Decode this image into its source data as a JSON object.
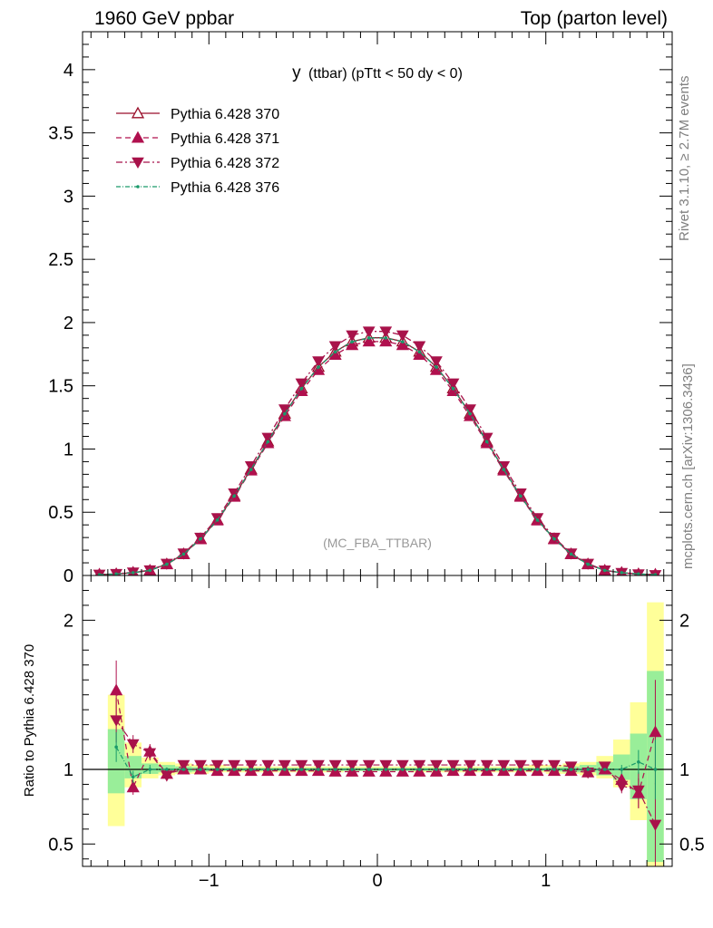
{
  "header": {
    "left": "1960 GeV ppbar",
    "right": "Top (parton level)",
    "side_top": "Rivet 3.1.10, ≥ 2.7M events",
    "side_bottom": "mcplots.cern.ch [arXiv:1306.3436]"
  },
  "colors": {
    "s370": "#9a0f2a",
    "s371": "#b0104e",
    "s372": "#a8124a",
    "s376": "#1a9a6a",
    "band_yellow": "#ffff99",
    "band_green": "#99ee99"
  },
  "chart_data": [
    {
      "type": "line",
      "title": "y (ttbar) (pTtt < 50 dy < 0)",
      "title_main": "y",
      "title_rest": "(ttbar) (pTtt < 50 dy < 0)",
      "watermark": "(MC_FBA_TTBAR)",
      "xlim": [
        -1.75,
        1.75
      ],
      "ylim": [
        0,
        4.3
      ],
      "xticks": [
        -1,
        0,
        1
      ],
      "yticks": [
        0,
        0.5,
        1,
        1.5,
        2,
        2.5,
        3,
        3.5,
        4
      ],
      "ytick_labels": [
        "0",
        "0.5",
        "1",
        "1.5",
        "2",
        "2.5",
        "3",
        "3.5",
        "4"
      ],
      "legend_position": "top-left",
      "x": [
        -1.65,
        -1.55,
        -1.45,
        -1.35,
        -1.25,
        -1.15,
        -1.05,
        -0.95,
        -0.85,
        -0.75,
        -0.65,
        -0.55,
        -0.45,
        -0.35,
        -0.25,
        -0.15,
        -0.05,
        0.05,
        0.15,
        0.25,
        0.35,
        0.45,
        0.55,
        0.65,
        0.75,
        0.85,
        0.95,
        1.05,
        1.15,
        1.25,
        1.35,
        1.45,
        1.55,
        1.65
      ],
      "series": [
        {
          "name": "Pythia 6.428 370",
          "marker": "triangle-up-open",
          "dash": "",
          "values": [
            0.006,
            0.012,
            0.022,
            0.04,
            0.09,
            0.17,
            0.29,
            0.44,
            0.63,
            0.84,
            1.06,
            1.28,
            1.48,
            1.65,
            1.77,
            1.85,
            1.88,
            1.88,
            1.85,
            1.77,
            1.65,
            1.48,
            1.28,
            1.06,
            0.84,
            0.63,
            0.44,
            0.29,
            0.17,
            0.09,
            0.04,
            0.022,
            0.012,
            0.006
          ]
        },
        {
          "name": "Pythia 6.428 371",
          "marker": "triangle-up",
          "dash": "6,4",
          "values": [
            0.009,
            0.011,
            0.024,
            0.039,
            0.088,
            0.168,
            0.286,
            0.435,
            0.622,
            0.83,
            1.046,
            1.26,
            1.458,
            1.625,
            1.745,
            1.822,
            1.85,
            1.85,
            1.822,
            1.745,
            1.625,
            1.458,
            1.26,
            1.046,
            0.83,
            0.622,
            0.435,
            0.286,
            0.168,
            0.088,
            0.039,
            0.022,
            0.01,
            0.008
          ]
        },
        {
          "name": "Pythia 6.428 372",
          "marker": "triangle-down",
          "dash": "7,3,2,3",
          "values": [
            0.008,
            0.013,
            0.025,
            0.042,
            0.094,
            0.175,
            0.3,
            0.455,
            0.65,
            0.865,
            1.09,
            1.315,
            1.52,
            1.695,
            1.815,
            1.9,
            1.93,
            1.93,
            1.9,
            1.815,
            1.695,
            1.52,
            1.315,
            1.09,
            0.865,
            0.65,
            0.455,
            0.3,
            0.175,
            0.094,
            0.041,
            0.021,
            0.01,
            0.004
          ]
        },
        {
          "name": "Pythia 6.428 376",
          "marker": "dot",
          "dash": "5,2,1,2",
          "values": [
            0.006,
            0.012,
            0.022,
            0.04,
            0.089,
            0.169,
            0.289,
            0.438,
            0.628,
            0.838,
            1.058,
            1.278,
            1.478,
            1.648,
            1.768,
            1.848,
            1.878,
            1.878,
            1.848,
            1.768,
            1.648,
            1.478,
            1.278,
            1.058,
            0.838,
            0.628,
            0.438,
            0.289,
            0.169,
            0.089,
            0.04,
            0.022,
            0.012,
            0.006
          ]
        }
      ]
    },
    {
      "type": "line",
      "ylabel": "Ratio to Pythia 6.428 370",
      "xlim": [
        -1.75,
        1.75
      ],
      "ylim": [
        0.35,
        2.3
      ],
      "xticks": [
        -1,
        0,
        1
      ],
      "xtick_labels": [
        "−1",
        "0",
        "1"
      ],
      "yticks": [
        0.5,
        1,
        2
      ],
      "ytick_labels": [
        "0.5",
        "1",
        "2"
      ],
      "reference_line": 1,
      "x": [
        -1.55,
        -1.45,
        -1.35,
        -1.25,
        -1.15,
        -1.05,
        -0.95,
        -0.85,
        -0.75,
        -0.65,
        -0.55,
        -0.45,
        -0.35,
        -0.25,
        -0.15,
        -0.05,
        0.05,
        0.15,
        0.25,
        0.35,
        0.45,
        0.55,
        0.65,
        0.75,
        0.85,
        0.95,
        1.05,
        1.15,
        1.25,
        1.35,
        1.45,
        1.55,
        1.65
      ],
      "band_yellow": [
        [
          0.62,
          1.5
        ],
        [
          0.88,
          1.18
        ],
        [
          0.94,
          1.08
        ],
        [
          0.96,
          1.05
        ],
        [
          0.97,
          1.04
        ],
        [
          0.97,
          1.03
        ],
        [
          0.98,
          1.03
        ],
        [
          0.98,
          1.02
        ],
        [
          0.98,
          1.02
        ],
        [
          0.98,
          1.02
        ],
        [
          0.98,
          1.02
        ],
        [
          0.98,
          1.02
        ],
        [
          0.98,
          1.02
        ],
        [
          0.98,
          1.02
        ],
        [
          0.99,
          1.02
        ],
        [
          0.99,
          1.02
        ],
        [
          0.99,
          1.02
        ],
        [
          0.99,
          1.02
        ],
        [
          0.98,
          1.02
        ],
        [
          0.98,
          1.02
        ],
        [
          0.98,
          1.02
        ],
        [
          0.98,
          1.02
        ],
        [
          0.98,
          1.02
        ],
        [
          0.98,
          1.02
        ],
        [
          0.98,
          1.02
        ],
        [
          0.98,
          1.03
        ],
        [
          0.97,
          1.03
        ],
        [
          0.97,
          1.04
        ],
        [
          0.96,
          1.05
        ],
        [
          0.94,
          1.09
        ],
        [
          0.88,
          1.2
        ],
        [
          0.66,
          1.45
        ],
        [
          0.35,
          2.12
        ]
      ],
      "band_green": [
        [
          0.84,
          1.27
        ],
        [
          0.94,
          1.09
        ],
        [
          0.97,
          1.04
        ],
        [
          0.98,
          1.03
        ],
        [
          0.98,
          1.02
        ],
        [
          0.985,
          1.015
        ],
        [
          0.99,
          1.01
        ],
        [
          0.99,
          1.01
        ],
        [
          0.99,
          1.01
        ],
        [
          0.99,
          1.01
        ],
        [
          0.99,
          1.01
        ],
        [
          0.99,
          1.01
        ],
        [
          0.99,
          1.01
        ],
        [
          0.99,
          1.01
        ],
        [
          0.99,
          1.01
        ],
        [
          0.99,
          1.01
        ],
        [
          0.99,
          1.01
        ],
        [
          0.99,
          1.01
        ],
        [
          0.99,
          1.01
        ],
        [
          0.99,
          1.01
        ],
        [
          0.99,
          1.01
        ],
        [
          0.99,
          1.01
        ],
        [
          0.99,
          1.01
        ],
        [
          0.99,
          1.01
        ],
        [
          0.99,
          1.01
        ],
        [
          0.99,
          1.01
        ],
        [
          0.985,
          1.015
        ],
        [
          0.98,
          1.02
        ],
        [
          0.98,
          1.03
        ],
        [
          0.96,
          1.05
        ],
        [
          0.93,
          1.1
        ],
        [
          0.8,
          1.24
        ],
        [
          0.38,
          1.66
        ]
      ],
      "series": [
        {
          "name": "Pythia 6.428 371",
          "marker": "triangle-up",
          "dash": "6,4",
          "values": [
            1.53,
            0.88,
            1.12,
            0.97,
            1.0,
            1.0,
            0.99,
            0.99,
            0.99,
            0.99,
            0.99,
            0.99,
            0.99,
            0.985,
            0.985,
            0.985,
            0.985,
            0.985,
            0.985,
            0.985,
            0.99,
            0.99,
            0.99,
            0.99,
            0.99,
            0.99,
            0.99,
            0.99,
            0.98,
            1.0,
            0.93,
            0.84,
            1.25
          ],
          "err": [
            0.2,
            0.05,
            0.05,
            0.02,
            0.01,
            0.01,
            0.01,
            0.01,
            0.01,
            0.01,
            0.01,
            0.01,
            0.01,
            0.01,
            0.01,
            0.01,
            0.01,
            0.01,
            0.01,
            0.01,
            0.01,
            0.01,
            0.01,
            0.01,
            0.01,
            0.01,
            0.01,
            0.01,
            0.01,
            0.02,
            0.04,
            0.1,
            0.35
          ]
        },
        {
          "name": "Pythia 6.428 372",
          "marker": "triangle-down",
          "dash": "7,3,2,3",
          "values": [
            1.33,
            1.17,
            1.11,
            0.96,
            1.03,
            1.03,
            1.03,
            1.03,
            1.03,
            1.03,
            1.03,
            1.03,
            1.03,
            1.03,
            1.03,
            1.03,
            1.03,
            1.03,
            1.03,
            1.03,
            1.03,
            1.03,
            1.03,
            1.03,
            1.03,
            1.03,
            1.03,
            1.02,
            0.98,
            1.02,
            0.89,
            0.86,
            0.63
          ],
          "err": [
            0.15,
            0.06,
            0.05,
            0.02,
            0.01,
            0.01,
            0.01,
            0.01,
            0.01,
            0.01,
            0.01,
            0.01,
            0.01,
            0.01,
            0.01,
            0.01,
            0.01,
            0.01,
            0.01,
            0.01,
            0.01,
            0.01,
            0.01,
            0.01,
            0.01,
            0.01,
            0.01,
            0.01,
            0.01,
            0.02,
            0.05,
            0.12,
            0.28
          ]
        },
        {
          "name": "Pythia 6.428 376",
          "marker": "dot",
          "dash": "5,2,1,2",
          "values": [
            1.15,
            0.95,
            1.0,
            1.0,
            1.0,
            1.0,
            1.0,
            1.0,
            1.0,
            1.0,
            1.0,
            1.0,
            1.0,
            1.0,
            1.0,
            1.0,
            1.0,
            1.0,
            1.0,
            1.0,
            1.0,
            1.0,
            1.0,
            1.0,
            1.0,
            1.0,
            1.0,
            1.0,
            1.0,
            1.0,
            1.0,
            1.05,
            1.0
          ],
          "err": [
            0.1,
            0.04,
            0.03,
            0.01,
            0.01,
            0.01,
            0.01,
            0.01,
            0.01,
            0.01,
            0.01,
            0.01,
            0.01,
            0.01,
            0.01,
            0.01,
            0.01,
            0.01,
            0.01,
            0.01,
            0.01,
            0.01,
            0.01,
            0.01,
            0.01,
            0.01,
            0.01,
            0.01,
            0.01,
            0.01,
            0.03,
            0.08,
            0.2
          ]
        }
      ]
    }
  ]
}
